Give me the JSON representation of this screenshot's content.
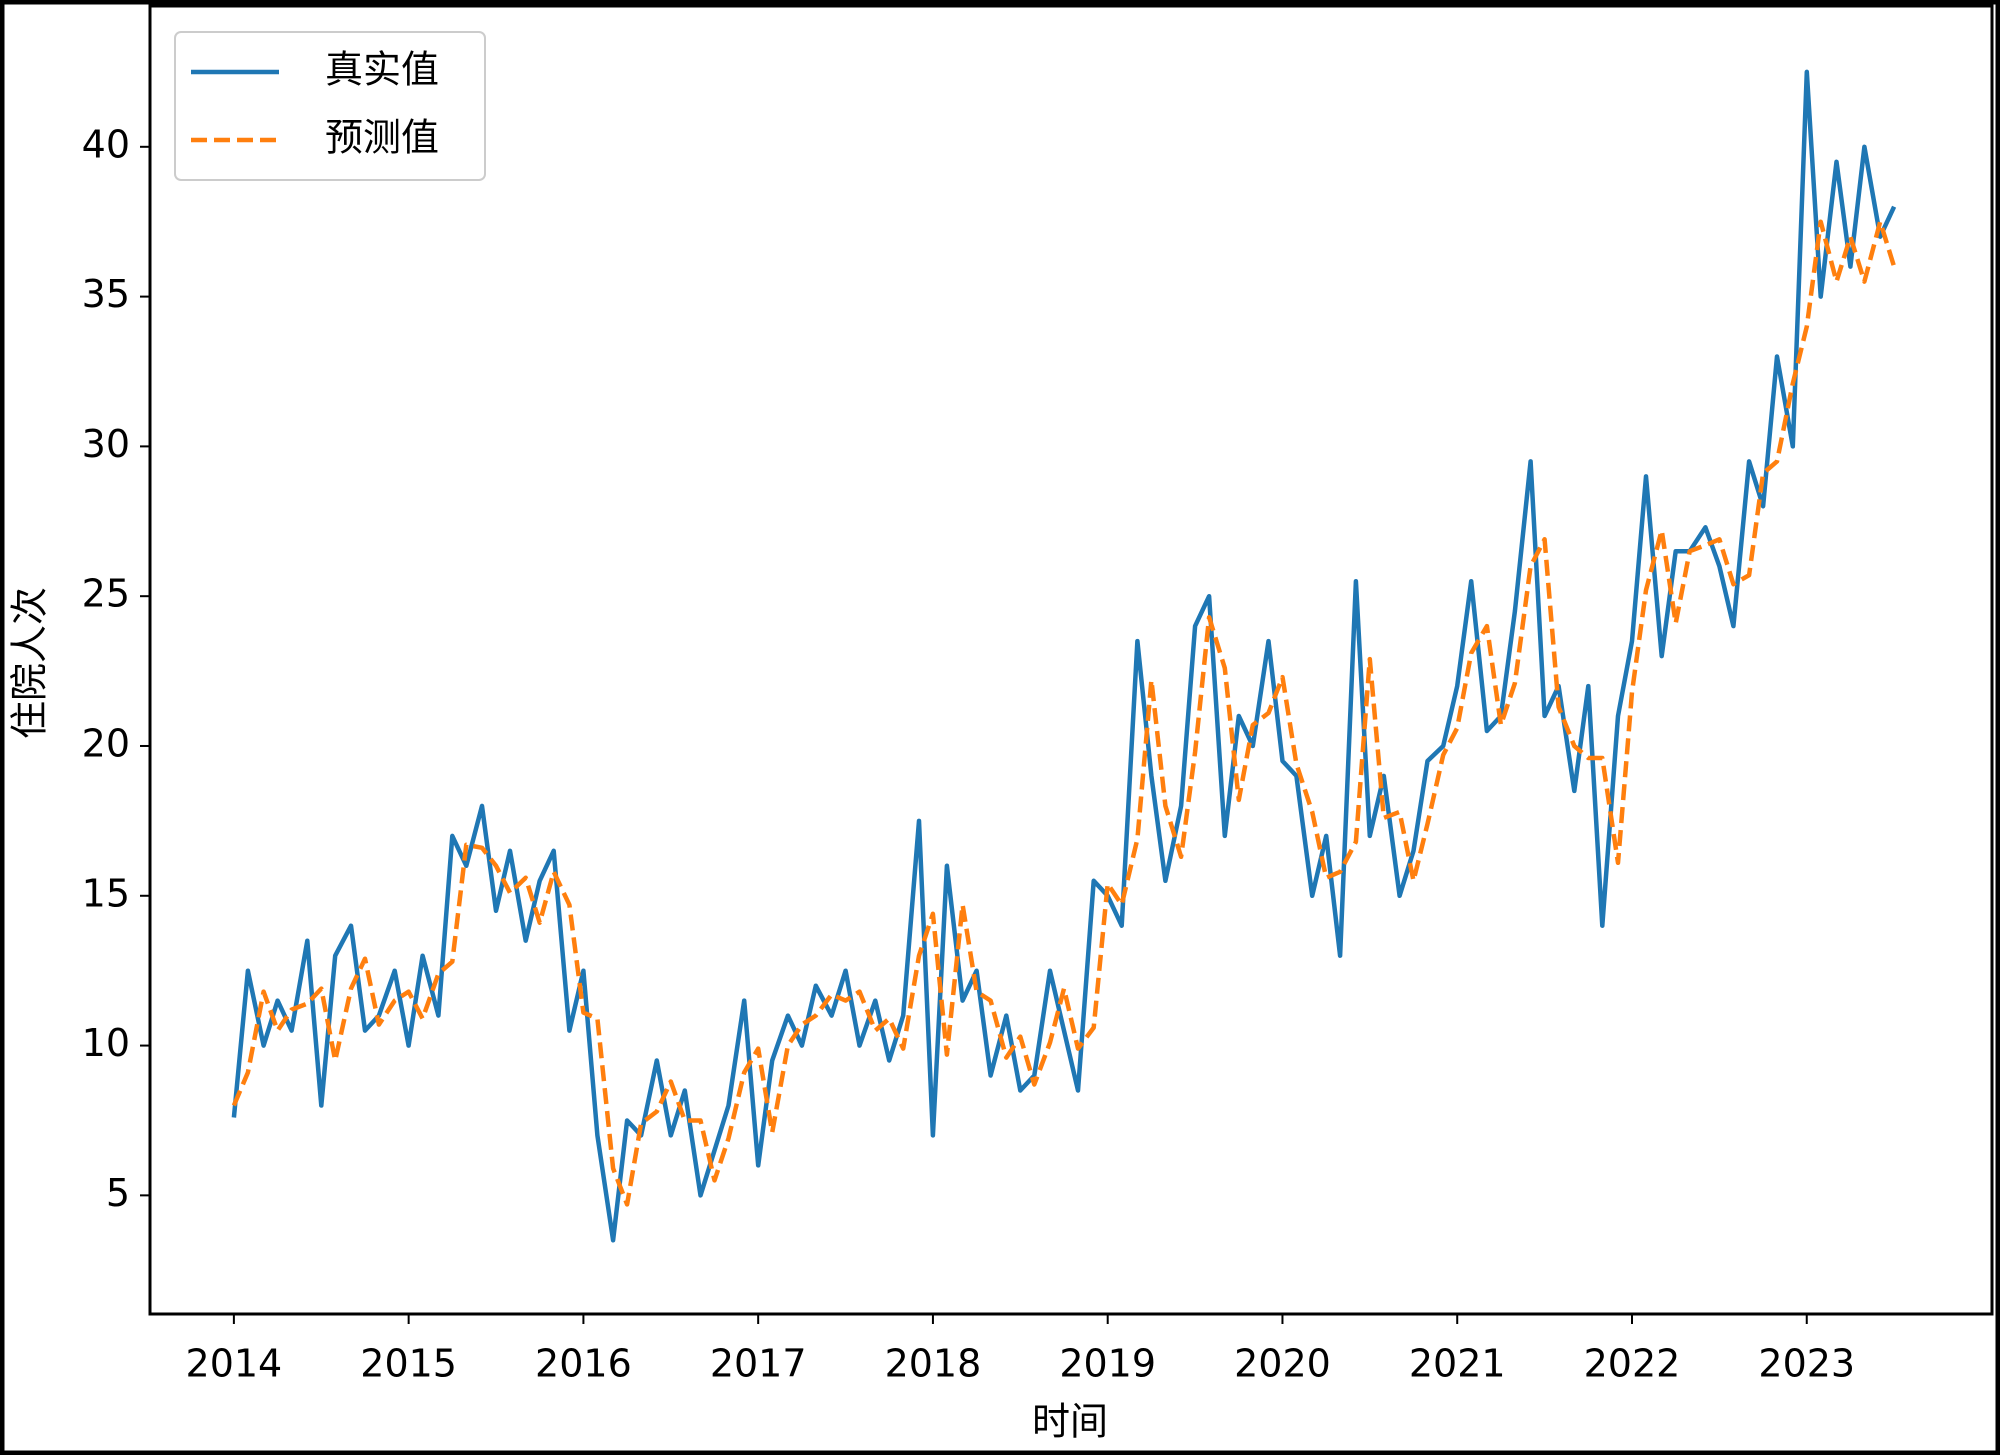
{
  "chart_data": {
    "type": "line",
    "x_label": "时间",
    "y_label": "住院人次",
    "x": [
      2014.0,
      2014.08,
      2014.17,
      2014.25,
      2014.33,
      2014.42,
      2014.5,
      2014.58,
      2014.67,
      2014.75,
      2014.83,
      2014.92,
      2015.0,
      2015.08,
      2015.17,
      2015.25,
      2015.33,
      2015.42,
      2015.5,
      2015.58,
      2015.67,
      2015.75,
      2015.83,
      2015.92,
      2016.0,
      2016.08,
      2016.17,
      2016.25,
      2016.33,
      2016.42,
      2016.5,
      2016.58,
      2016.67,
      2016.75,
      2016.83,
      2016.92,
      2017.0,
      2017.08,
      2017.17,
      2017.25,
      2017.33,
      2017.42,
      2017.5,
      2017.58,
      2017.67,
      2017.75,
      2017.83,
      2017.92,
      2018.0,
      2018.08,
      2018.17,
      2018.25,
      2018.33,
      2018.42,
      2018.5,
      2018.58,
      2018.67,
      2018.75,
      2018.83,
      2018.92,
      2019.0,
      2019.08,
      2019.17,
      2019.25,
      2019.33,
      2019.42,
      2019.5,
      2019.58,
      2019.67,
      2019.75,
      2019.83,
      2019.92,
      2020.0,
      2020.08,
      2020.17,
      2020.25,
      2020.33,
      2020.42,
      2020.5,
      2020.58,
      2020.67,
      2020.75,
      2020.83,
      2020.92,
      2021.0,
      2021.08,
      2021.17,
      2021.25,
      2021.33,
      2021.42,
      2021.5,
      2021.58,
      2021.67,
      2021.75,
      2021.83,
      2021.92,
      2022.0,
      2022.08,
      2022.17,
      2022.25,
      2022.33,
      2022.42,
      2022.5,
      2022.58,
      2022.67,
      2022.75,
      2022.83,
      2022.92,
      2023.0,
      2023.08,
      2023.17,
      2023.25,
      2023.33,
      2023.42,
      2023.5
    ],
    "series": [
      {
        "name": "真实值",
        "color": "#1f77b4",
        "dash": false,
        "values": [
          7.6,
          12.5,
          10.0,
          11.5,
          10.5,
          13.5,
          8.0,
          13.0,
          14.0,
          10.5,
          11.0,
          12.5,
          10.0,
          13.0,
          11.0,
          17.0,
          16.0,
          18.0,
          14.5,
          16.5,
          13.5,
          15.5,
          16.5,
          10.5,
          12.5,
          7.0,
          3.5,
          7.5,
          7.0,
          9.5,
          7.0,
          8.5,
          5.0,
          6.5,
          8.0,
          11.5,
          6.0,
          9.5,
          11.0,
          10.0,
          12.0,
          11.0,
          12.5,
          10.0,
          11.5,
          9.5,
          11.0,
          17.5,
          7.0,
          16.0,
          11.5,
          12.5,
          9.0,
          11.0,
          8.5,
          9.0,
          12.5,
          10.5,
          8.5,
          15.5,
          15.0,
          14.0,
          23.5,
          19.0,
          15.5,
          18.0,
          24.0,
          25.0,
          17.0,
          21.0,
          20.0,
          23.5,
          19.5,
          19.0,
          15.0,
          17.0,
          13.0,
          25.5,
          17.0,
          19.0,
          15.0,
          16.5,
          19.5,
          20.0,
          22.0,
          25.5,
          20.5,
          21.0,
          24.5,
          29.5,
          21.0,
          22.0,
          18.5,
          22.0,
          14.0,
          21.0,
          23.5,
          29.0,
          23.0,
          26.5,
          26.5,
          27.3,
          26.0,
          24.0,
          29.5,
          28.0,
          33.0,
          30.0,
          42.5,
          35.0,
          39.5,
          36.0,
          40.0,
          37.0,
          38.0
        ]
      },
      {
        "name": "预测值",
        "color": "#ff7f0e",
        "dash": true,
        "values": [
          8.0,
          9.1,
          11.8,
          10.5,
          11.2,
          11.4,
          11.9,
          9.5,
          11.9,
          12.9,
          10.7,
          11.5,
          11.8,
          10.9,
          12.4,
          12.8,
          16.7,
          16.6,
          16.0,
          15.1,
          15.6,
          14.1,
          15.8,
          14.7,
          11.1,
          10.9,
          5.9,
          4.7,
          7.4,
          7.8,
          8.8,
          7.5,
          7.5,
          5.5,
          6.9,
          9.1,
          9.9,
          7.1,
          10.0,
          10.7,
          11.0,
          11.7,
          11.5,
          11.8,
          10.5,
          10.9,
          9.9,
          13.0,
          14.4,
          9.7,
          14.7,
          11.8,
          11.5,
          9.6,
          10.3,
          8.7,
          10.1,
          11.9,
          9.9,
          10.6,
          15.4,
          14.7,
          16.9,
          22.2,
          18.0,
          16.3,
          19.8,
          24.3,
          22.6,
          18.2,
          20.7,
          21.1,
          22.3,
          19.4,
          17.8,
          15.6,
          15.8,
          16.8,
          22.9,
          17.6,
          17.8,
          15.5,
          17.4,
          19.7,
          20.6,
          23.1,
          24.0,
          20.7,
          22.1,
          26.0,
          26.9,
          21.3,
          20.0,
          19.6,
          19.6,
          16.1,
          21.8,
          25.2,
          27.2,
          24.1,
          26.5,
          26.7,
          26.9,
          25.4,
          25.7,
          29.1,
          29.5,
          32.1,
          34.0,
          37.5,
          35.5,
          37.0,
          35.5,
          37.5,
          36.0
        ]
      }
    ],
    "xlim": [
      2013.52,
      2024.06
    ],
    "xticks": [
      2014,
      2015,
      2016,
      2017,
      2018,
      2019,
      2020,
      2021,
      2022,
      2023
    ],
    "ylim": [
      1.04,
      44.7
    ],
    "yticks": [
      5,
      10,
      15,
      20,
      25,
      30,
      35,
      40
    ],
    "legend": "upper left",
    "grid": false
  }
}
